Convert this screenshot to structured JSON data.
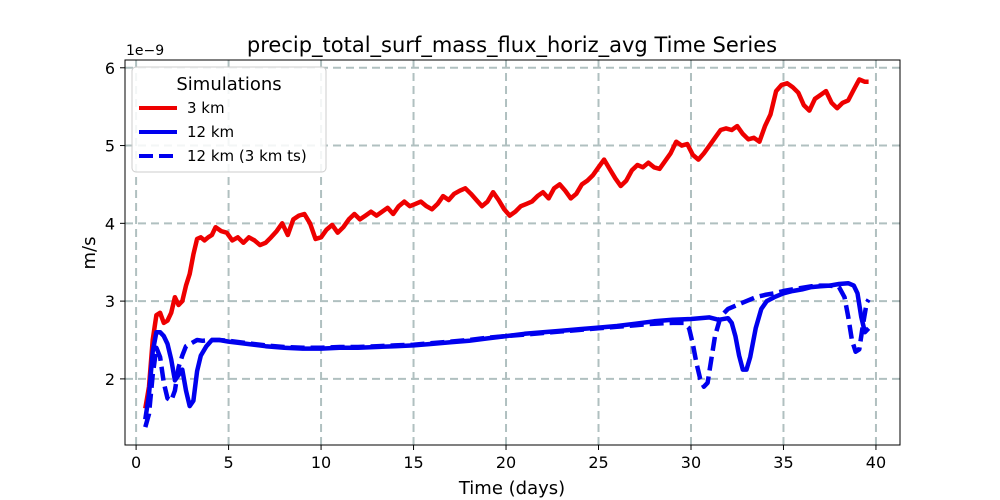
{
  "chart_data": {
    "type": "line",
    "title": "precip_total_surf_mass_flux_horiz_avg Time Series",
    "xlabel": "Time (days)",
    "ylabel": "m/s",
    "y_offset_label": "1e−9",
    "xlim": [
      -0.6,
      41.3
    ],
    "ylim": [
      1.15,
      6.1
    ],
    "x_ticks": [
      0,
      5,
      10,
      15,
      20,
      25,
      30,
      35,
      40
    ],
    "x_tick_labels": [
      "0",
      "5",
      "10",
      "15",
      "20",
      "25",
      "30",
      "35",
      "40"
    ],
    "y_ticks": [
      2,
      3,
      4,
      5,
      6
    ],
    "y_tick_labels": [
      "2",
      "3",
      "4",
      "5",
      "6"
    ],
    "grid": true,
    "legend": {
      "title": "Simulations",
      "position": "upper-left",
      "entries": [
        "3 km",
        "12 km",
        "12 km (3 km ts)"
      ]
    },
    "series": [
      {
        "name": "3 km",
        "color": "#ee0000",
        "style": "solid",
        "points": [
          [
            0.5,
            1.62
          ],
          [
            0.7,
            1.9
          ],
          [
            0.9,
            2.5
          ],
          [
            1.1,
            2.82
          ],
          [
            1.3,
            2.85
          ],
          [
            1.5,
            2.72
          ],
          [
            1.7,
            2.75
          ],
          [
            1.9,
            2.85
          ],
          [
            2.1,
            3.05
          ],
          [
            2.3,
            2.95
          ],
          [
            2.5,
            3.0
          ],
          [
            2.7,
            3.2
          ],
          [
            2.9,
            3.35
          ],
          [
            3.1,
            3.6
          ],
          [
            3.3,
            3.8
          ],
          [
            3.5,
            3.82
          ],
          [
            3.7,
            3.78
          ],
          [
            3.9,
            3.82
          ],
          [
            4.1,
            3.85
          ],
          [
            4.3,
            3.95
          ],
          [
            4.6,
            3.9
          ],
          [
            4.9,
            3.88
          ],
          [
            5.2,
            3.78
          ],
          [
            5.5,
            3.82
          ],
          [
            5.8,
            3.75
          ],
          [
            6.1,
            3.82
          ],
          [
            6.4,
            3.78
          ],
          [
            6.7,
            3.72
          ],
          [
            7.0,
            3.75
          ],
          [
            7.3,
            3.82
          ],
          [
            7.6,
            3.9
          ],
          [
            7.9,
            4.0
          ],
          [
            8.2,
            3.85
          ],
          [
            8.5,
            4.05
          ],
          [
            8.8,
            4.1
          ],
          [
            9.1,
            4.12
          ],
          [
            9.4,
            4.0
          ],
          [
            9.7,
            3.8
          ],
          [
            10.0,
            3.82
          ],
          [
            10.3,
            3.92
          ],
          [
            10.6,
            3.98
          ],
          [
            10.9,
            3.88
          ],
          [
            11.2,
            3.95
          ],
          [
            11.5,
            4.05
          ],
          [
            11.8,
            4.12
          ],
          [
            12.1,
            4.05
          ],
          [
            12.4,
            4.1
          ],
          [
            12.7,
            4.15
          ],
          [
            13.0,
            4.1
          ],
          [
            13.3,
            4.15
          ],
          [
            13.6,
            4.2
          ],
          [
            13.9,
            4.12
          ],
          [
            14.2,
            4.22
          ],
          [
            14.5,
            4.28
          ],
          [
            14.8,
            4.22
          ],
          [
            15.1,
            4.25
          ],
          [
            15.4,
            4.28
          ],
          [
            15.7,
            4.22
          ],
          [
            16.0,
            4.18
          ],
          [
            16.3,
            4.25
          ],
          [
            16.6,
            4.35
          ],
          [
            16.9,
            4.3
          ],
          [
            17.2,
            4.38
          ],
          [
            17.5,
            4.42
          ],
          [
            17.8,
            4.45
          ],
          [
            18.1,
            4.38
          ],
          [
            18.4,
            4.3
          ],
          [
            18.7,
            4.22
          ],
          [
            19.0,
            4.28
          ],
          [
            19.3,
            4.4
          ],
          [
            19.6,
            4.3
          ],
          [
            19.9,
            4.18
          ],
          [
            20.2,
            4.1
          ],
          [
            20.5,
            4.15
          ],
          [
            20.8,
            4.22
          ],
          [
            21.1,
            4.25
          ],
          [
            21.4,
            4.28
          ],
          [
            21.7,
            4.35
          ],
          [
            22.0,
            4.4
          ],
          [
            22.3,
            4.32
          ],
          [
            22.6,
            4.45
          ],
          [
            22.9,
            4.5
          ],
          [
            23.2,
            4.42
          ],
          [
            23.5,
            4.32
          ],
          [
            23.8,
            4.38
          ],
          [
            24.1,
            4.5
          ],
          [
            24.4,
            4.55
          ],
          [
            24.7,
            4.62
          ],
          [
            25.0,
            4.72
          ],
          [
            25.3,
            4.82
          ],
          [
            25.6,
            4.7
          ],
          [
            25.9,
            4.58
          ],
          [
            26.2,
            4.48
          ],
          [
            26.5,
            4.55
          ],
          [
            26.8,
            4.68
          ],
          [
            27.1,
            4.75
          ],
          [
            27.4,
            4.72
          ],
          [
            27.7,
            4.78
          ],
          [
            28.0,
            4.72
          ],
          [
            28.3,
            4.7
          ],
          [
            28.6,
            4.8
          ],
          [
            28.9,
            4.9
          ],
          [
            29.2,
            5.05
          ],
          [
            29.5,
            5.0
          ],
          [
            29.8,
            5.02
          ],
          [
            30.1,
            4.88
          ],
          [
            30.4,
            4.82
          ],
          [
            30.7,
            4.9
          ],
          [
            31.0,
            5.0
          ],
          [
            31.3,
            5.1
          ],
          [
            31.6,
            5.2
          ],
          [
            31.9,
            5.22
          ],
          [
            32.2,
            5.2
          ],
          [
            32.5,
            5.25
          ],
          [
            32.8,
            5.15
          ],
          [
            33.1,
            5.08
          ],
          [
            33.4,
            5.1
          ],
          [
            33.7,
            5.05
          ],
          [
            34.0,
            5.25
          ],
          [
            34.3,
            5.4
          ],
          [
            34.6,
            5.7
          ],
          [
            34.9,
            5.78
          ],
          [
            35.2,
            5.8
          ],
          [
            35.5,
            5.75
          ],
          [
            35.8,
            5.68
          ],
          [
            36.1,
            5.52
          ],
          [
            36.4,
            5.45
          ],
          [
            36.7,
            5.6
          ],
          [
            37.0,
            5.65
          ],
          [
            37.3,
            5.7
          ],
          [
            37.6,
            5.55
          ],
          [
            37.9,
            5.48
          ],
          [
            38.2,
            5.55
          ],
          [
            38.5,
            5.58
          ],
          [
            38.8,
            5.72
          ],
          [
            39.1,
            5.85
          ],
          [
            39.4,
            5.82
          ],
          [
            39.6,
            5.82
          ]
        ]
      },
      {
        "name": "12 km",
        "color": "#0000ee",
        "style": "solid",
        "points": [
          [
            0.5,
            1.48
          ],
          [
            0.7,
            1.8
          ],
          [
            0.9,
            2.35
          ],
          [
            1.1,
            2.6
          ],
          [
            1.3,
            2.6
          ],
          [
            1.5,
            2.55
          ],
          [
            1.7,
            2.45
          ],
          [
            1.9,
            2.25
          ],
          [
            2.1,
            1.98
          ],
          [
            2.3,
            2.05
          ],
          [
            2.5,
            2.12
          ],
          [
            2.7,
            1.85
          ],
          [
            2.9,
            1.65
          ],
          [
            3.1,
            1.72
          ],
          [
            3.3,
            2.1
          ],
          [
            3.5,
            2.3
          ],
          [
            3.8,
            2.42
          ],
          [
            4.1,
            2.5
          ],
          [
            4.5,
            2.5
          ],
          [
            5.0,
            2.48
          ],
          [
            6.0,
            2.45
          ],
          [
            7.0,
            2.42
          ],
          [
            8.0,
            2.4
          ],
          [
            9.0,
            2.39
          ],
          [
            10.0,
            2.39
          ],
          [
            11.0,
            2.4
          ],
          [
            12.0,
            2.4
          ],
          [
            13.0,
            2.41
          ],
          [
            14.0,
            2.42
          ],
          [
            15.0,
            2.43
          ],
          [
            16.0,
            2.45
          ],
          [
            17.0,
            2.47
          ],
          [
            18.0,
            2.49
          ],
          [
            19.0,
            2.52
          ],
          [
            20.0,
            2.55
          ],
          [
            21.0,
            2.58
          ],
          [
            22.0,
            2.6
          ],
          [
            23.0,
            2.62
          ],
          [
            24.0,
            2.64
          ],
          [
            25.0,
            2.66
          ],
          [
            26.0,
            2.68
          ],
          [
            27.0,
            2.71
          ],
          [
            28.0,
            2.74
          ],
          [
            29.0,
            2.76
          ],
          [
            30.0,
            2.77
          ],
          [
            31.0,
            2.79
          ],
          [
            31.5,
            2.76
          ],
          [
            32.0,
            2.78
          ],
          [
            32.2,
            2.72
          ],
          [
            32.4,
            2.55
          ],
          [
            32.6,
            2.3
          ],
          [
            32.8,
            2.12
          ],
          [
            33.0,
            2.12
          ],
          [
            33.2,
            2.28
          ],
          [
            33.5,
            2.65
          ],
          [
            33.8,
            2.9
          ],
          [
            34.1,
            3.0
          ],
          [
            34.5,
            3.05
          ],
          [
            35.0,
            3.1
          ],
          [
            35.5,
            3.13
          ],
          [
            36.0,
            3.15
          ],
          [
            36.5,
            3.18
          ],
          [
            37.0,
            3.19
          ],
          [
            37.5,
            3.2
          ],
          [
            38.0,
            3.22
          ],
          [
            38.5,
            3.23
          ],
          [
            38.8,
            3.2
          ],
          [
            39.0,
            3.1
          ],
          [
            39.2,
            2.8
          ],
          [
            39.4,
            2.6
          ],
          [
            39.6,
            2.65
          ]
        ]
      },
      {
        "name": "12 km (3 km ts)",
        "color": "#0000ee",
        "style": "dashed",
        "points": [
          [
            0.5,
            1.38
          ],
          [
            0.7,
            1.55
          ],
          [
            0.9,
            2.05
          ],
          [
            1.1,
            2.4
          ],
          [
            1.3,
            2.28
          ],
          [
            1.5,
            1.95
          ],
          [
            1.7,
            1.75
          ],
          [
            1.9,
            1.72
          ],
          [
            2.1,
            1.85
          ],
          [
            2.3,
            2.15
          ],
          [
            2.5,
            2.3
          ],
          [
            2.7,
            2.42
          ],
          [
            3.0,
            2.46
          ],
          [
            3.3,
            2.5
          ],
          [
            3.6,
            2.49
          ],
          [
            4.0,
            2.5
          ],
          [
            4.5,
            2.5
          ],
          [
            5.0,
            2.49
          ],
          [
            6.0,
            2.46
          ],
          [
            7.0,
            2.43
          ],
          [
            8.0,
            2.41
          ],
          [
            9.0,
            2.4
          ],
          [
            10.0,
            2.4
          ],
          [
            11.0,
            2.41
          ],
          [
            12.0,
            2.41
          ],
          [
            13.0,
            2.42
          ],
          [
            14.0,
            2.43
          ],
          [
            15.0,
            2.44
          ],
          [
            16.0,
            2.46
          ],
          [
            17.0,
            2.48
          ],
          [
            18.0,
            2.5
          ],
          [
            19.0,
            2.53
          ],
          [
            20.0,
            2.55
          ],
          [
            21.0,
            2.57
          ],
          [
            22.0,
            2.59
          ],
          [
            23.0,
            2.61
          ],
          [
            24.0,
            2.63
          ],
          [
            25.0,
            2.65
          ],
          [
            26.0,
            2.67
          ],
          [
            27.0,
            2.69
          ],
          [
            28.0,
            2.71
          ],
          [
            29.0,
            2.72
          ],
          [
            29.6,
            2.72
          ],
          [
            29.9,
            2.65
          ],
          [
            30.1,
            2.45
          ],
          [
            30.3,
            2.2
          ],
          [
            30.5,
            2.0
          ],
          [
            30.7,
            1.9
          ],
          [
            30.9,
            1.95
          ],
          [
            31.1,
            2.25
          ],
          [
            31.3,
            2.55
          ],
          [
            31.6,
            2.8
          ],
          [
            32.0,
            2.9
          ],
          [
            32.5,
            2.95
          ],
          [
            33.0,
            3.0
          ],
          [
            33.5,
            3.05
          ],
          [
            34.0,
            3.08
          ],
          [
            34.5,
            3.1
          ],
          [
            35.0,
            3.13
          ],
          [
            35.5,
            3.15
          ],
          [
            36.0,
            3.17
          ],
          [
            36.5,
            3.19
          ],
          [
            37.0,
            3.2
          ],
          [
            37.5,
            3.2
          ],
          [
            38.0,
            3.18
          ],
          [
            38.3,
            3.05
          ],
          [
            38.5,
            2.8
          ],
          [
            38.7,
            2.5
          ],
          [
            38.9,
            2.35
          ],
          [
            39.1,
            2.38
          ],
          [
            39.3,
            2.7
          ],
          [
            39.5,
            2.98
          ],
          [
            39.6,
            3.02
          ]
        ]
      }
    ]
  }
}
